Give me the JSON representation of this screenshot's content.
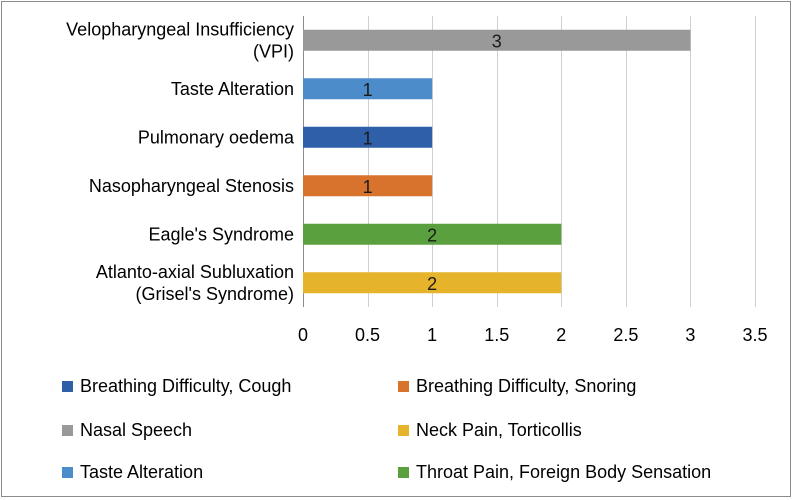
{
  "chart_data": {
    "type": "bar",
    "orientation": "horizontal",
    "categories": [
      [
        "Velopharyngeal Insufficiency",
        "(VPI)"
      ],
      [
        "Taste Alteration"
      ],
      [
        "Pulmonary oedema"
      ],
      [
        "Nasopharyngeal Stenosis"
      ],
      [
        "Eagle's Syndrome"
      ],
      [
        "Atlanto-axial Subluxation",
        "(Grisel's Syndrome)"
      ]
    ],
    "values": [
      3,
      1,
      1,
      1,
      2,
      2
    ],
    "bar_series": [
      "Nasal Speech",
      "Taste Alteration",
      "Breathing Difficulty, Cough",
      "Breathing Difficulty, Snoring",
      "Throat Pain, Foreign Body Sensation",
      "Neck Pain, Torticollis"
    ],
    "xlim": [
      0,
      3.5
    ],
    "xticks": [
      "0",
      "0.5",
      "1",
      "1.5",
      "2",
      "2.5",
      "3",
      "3.5"
    ],
    "xtick_values": [
      0,
      0.5,
      1,
      1.5,
      2,
      2.5,
      3,
      3.5
    ],
    "grid": "vertical",
    "legend_position": "bottom",
    "legend": [
      {
        "label": "Breathing Difficulty, Cough",
        "color": "#2e5fa8"
      },
      {
        "label": "Breathing Difficulty, Snoring",
        "color": "#d8732d"
      },
      {
        "label": "Nasal Speech",
        "color": "#999999"
      },
      {
        "label": "Neck Pain, Torticollis",
        "color": "#e6b42a"
      },
      {
        "label": "Taste Alteration",
        "color": "#4c8ccb"
      },
      {
        "label": "Throat Pain, Foreign Body Sensation",
        "color": "#5aa03e"
      }
    ]
  }
}
